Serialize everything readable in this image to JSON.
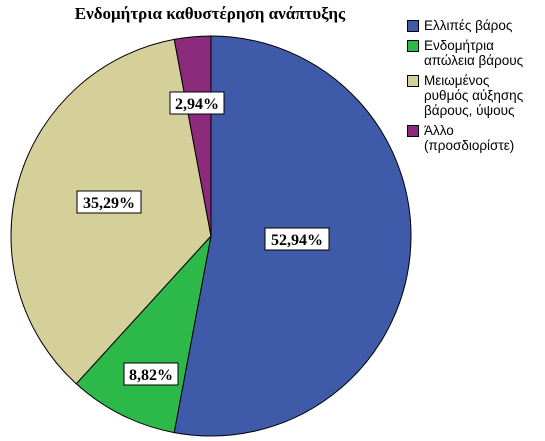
{
  "chart_data": {
    "type": "pie",
    "title": "Ενδομήτρια καθυστέρηση ανάπτυξης",
    "legend_position": "right",
    "slices": [
      {
        "label": "Ελλιπές βάρος",
        "value": 52.94,
        "display": "52,94%",
        "color": "#3f5aa9"
      },
      {
        "label": "Ενδομήτρια απώλεια βάρους",
        "value": 8.82,
        "display": "8,82%",
        "color": "#2db84a"
      },
      {
        "label": "Μειωμένος ρυθμός αύξησης βάρους, ύψους",
        "value": 35.29,
        "display": "35,29%",
        "color": "#d5cf9a"
      },
      {
        "label": "Άλλο (προσδιορίστε)",
        "value": 2.94,
        "display": "2,94%",
        "color": "#8c2a7c"
      }
    ]
  },
  "legend": {
    "items": [
      [
        "Ελλιπές βάρος"
      ],
      [
        "Ενδομήτρια",
        "απώλεια βάρους"
      ],
      [
        "Μειωμένος",
        "ρυθμός αύξησης",
        "βάρους, ύψους"
      ],
      [
        "Άλλο",
        "(προσδιορίστε)"
      ]
    ]
  }
}
